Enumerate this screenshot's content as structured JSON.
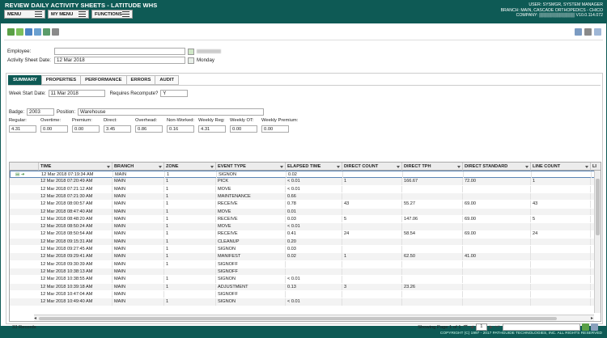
{
  "header": {
    "app_title": "REVIEW DAILY ACTIVITY SHEETS - LATITUDE WHS",
    "menu_label": "MENU",
    "my_menu_label": "MY MENU",
    "functions_label": "FUNCTIONS",
    "user_line": "USER: SYSMGR, SYSTEM MANAGER",
    "branch_line": "BRANCH: MAIN, CASCADE ORTHOPEDICS - CHICO",
    "company_line": "COMPANY: ▒▒▒▒▒▒▒▒▒▒▒▒  V10.0.114.072"
  },
  "form": {
    "employee_label": "Employee:",
    "employee_value": "",
    "activity_date_label": "Activity Sheet Date:",
    "activity_date_value": "12 Mar 2018",
    "day_of_week": "Monday"
  },
  "tabs": [
    "SUMMARY",
    "PROPERTIES",
    "PERFORMANCE",
    "ERRORS",
    "AUDIT"
  ],
  "summary": {
    "week_start_label": "Week Start Date:",
    "week_start_value": "11 Mar 2018",
    "recompute_label": "Requires Recompute?",
    "recompute_value": "Y",
    "badge_label": "Badge:",
    "badge_value": "2003",
    "position_label": "Position:",
    "position_value": "Warehouse",
    "stats": [
      {
        "label": "Regular:",
        "value": "4.31"
      },
      {
        "label": "Overtime:",
        "value": "0.00"
      },
      {
        "label": "Premium:",
        "value": "0.00"
      },
      {
        "label": "Direct:",
        "value": "3.45"
      },
      {
        "label": "Overhead:",
        "value": "0.86"
      },
      {
        "label": "Non-Worked:",
        "value": "0.16"
      },
      {
        "label": "Weekly Reg:",
        "value": "4.31"
      },
      {
        "label": "Weekly OT:",
        "value": "0.00"
      },
      {
        "label": "Weekly Premium:",
        "value": "0.00"
      }
    ]
  },
  "grid": {
    "columns": [
      "TIME",
      "BRANCH",
      "ZONE",
      "EVENT TYPE",
      "ELAPSED TIME",
      "DIRECT COUNT",
      "DIRECT TPH",
      "DIRECT STANDARD",
      "LINE COUNT",
      "LI"
    ],
    "rows": [
      [
        "12 Mar 2018 07:19:34 AM",
        "MAIN",
        "1",
        "SIGNON",
        "0.02",
        "",
        "",
        "",
        ""
      ],
      [
        "12 Mar 2018 07:20:49 AM",
        "MAIN",
        "1",
        "PICK",
        "< 0.01",
        "1",
        "166.67",
        "72.00",
        "1"
      ],
      [
        "12 Mar 2018 07:21:12 AM",
        "MAIN",
        "1",
        "MOVE",
        "< 0.01",
        "",
        "",
        "",
        ""
      ],
      [
        "12 Mar 2018 07:21:30 AM",
        "MAIN",
        "1",
        "MAINTENANCE",
        "0.66",
        "",
        "",
        "",
        ""
      ],
      [
        "12 Mar 2018 08:00:57 AM",
        "MAIN",
        "1",
        "RECEIVE",
        "0.78",
        "43",
        "55.27",
        "69.00",
        "43"
      ],
      [
        "12 Mar 2018 08:47:40 AM",
        "MAIN",
        "1",
        "MOVE",
        "0.01",
        "",
        "",
        "",
        ""
      ],
      [
        "12 Mar 2018 08:48:20 AM",
        "MAIN",
        "1",
        "RECEIVE",
        "0.03",
        "5",
        "147.06",
        "69.00",
        "5"
      ],
      [
        "12 Mar 2018 08:50:24 AM",
        "MAIN",
        "1",
        "MOVE",
        "< 0.01",
        "",
        "",
        "",
        ""
      ],
      [
        "12 Mar 2018 08:50:54 AM",
        "MAIN",
        "1",
        "RECEIVE",
        "0.41",
        "24",
        "58.54",
        "69.00",
        "24"
      ],
      [
        "12 Mar 2018 09:15:31 AM",
        "MAIN",
        "1",
        "CLEANUP",
        "0.20",
        "",
        "",
        "",
        ""
      ],
      [
        "12 Mar 2018 09:27:45 AM",
        "MAIN",
        "1",
        "SIGNON",
        "0.03",
        "",
        "",
        "",
        ""
      ],
      [
        "12 Mar 2018 09:29:41 AM",
        "MAIN",
        "1",
        "MANIFEST",
        "0.02",
        "1",
        "62.50",
        "41.00",
        ""
      ],
      [
        "12 Mar 2018 09:30:39 AM",
        "MAIN",
        "1",
        "SIGNOFF",
        "",
        "",
        "",
        "",
        ""
      ],
      [
        "12 Mar 2018 10:38:13 AM",
        "MAIN",
        "",
        "SIGNOFF",
        "",
        "",
        "",
        "",
        ""
      ],
      [
        "12 Mar 2018 10:38:55 AM",
        "MAIN",
        "1",
        "SIGNON",
        "< 0.01",
        "",
        "",
        "",
        ""
      ],
      [
        "12 Mar 2018 10:39:18 AM",
        "MAIN",
        "1",
        "ADJUSTMENT",
        "0.13",
        "3",
        "23.26",
        "",
        ""
      ],
      [
        "12 Mar 2018 10:47:04 AM",
        "MAIN",
        "",
        "SIGNOFF",
        "",
        "",
        "",
        "",
        ""
      ],
      [
        "12 Mar 2018 10:49:40 AM",
        "MAIN",
        "1",
        "SIGNON",
        "< 0.01",
        "",
        "",
        "",
        ""
      ]
    ]
  },
  "footer": {
    "records": "33 Records",
    "showing": "Showing Page 1 of 1",
    "page_value": "1",
    "copyright": "COPYRIGHT (C) 1997 - 2017 PATHGUIDE TECHNOLOGIES, INC. ALL RIGHTS RESERVED"
  },
  "colors": {
    "brand": "#0e5a55",
    "selected_row_border": "#5a84b5"
  }
}
